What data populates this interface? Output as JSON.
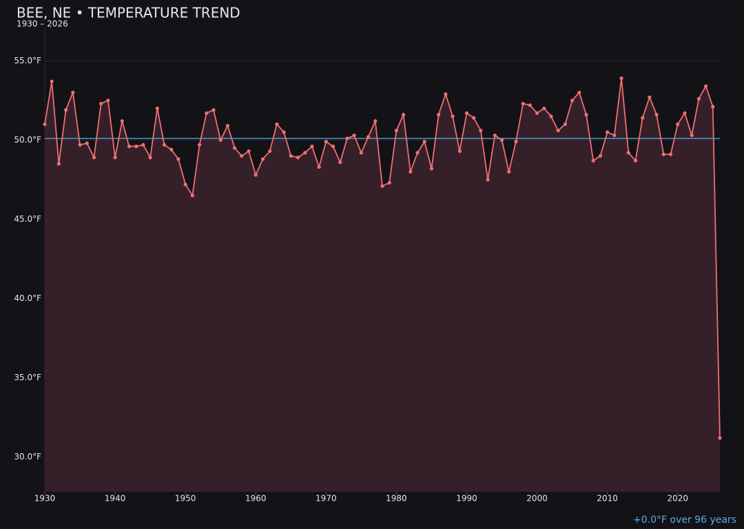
{
  "chart_data": {
    "type": "line",
    "title": "BEE, NE • TEMPERATURE TREND",
    "subtitle": "1930 – 2026",
    "annotation": "+0.0°F over 96 years",
    "x": [
      1930,
      1931,
      1932,
      1933,
      1934,
      1935,
      1936,
      1937,
      1938,
      1939,
      1940,
      1941,
      1942,
      1943,
      1944,
      1945,
      1946,
      1947,
      1948,
      1949,
      1950,
      1951,
      1952,
      1953,
      1954,
      1955,
      1956,
      1957,
      1958,
      1959,
      1960,
      1961,
      1962,
      1963,
      1964,
      1965,
      1966,
      1967,
      1968,
      1969,
      1970,
      1971,
      1972,
      1973,
      1974,
      1975,
      1976,
      1977,
      1978,
      1979,
      1980,
      1981,
      1982,
      1983,
      1984,
      1985,
      1986,
      1987,
      1988,
      1989,
      1990,
      1991,
      1992,
      1993,
      1994,
      1995,
      1996,
      1997,
      1998,
      1999,
      2000,
      2001,
      2002,
      2003,
      2004,
      2005,
      2006,
      2007,
      2008,
      2009,
      2010,
      2011,
      2012,
      2013,
      2014,
      2015,
      2016,
      2017,
      2018,
      2019,
      2020,
      2021,
      2022,
      2023,
      2024,
      2025,
      2026
    ],
    "series": [
      {
        "color": "#f07070",
        "fill": "#35202a",
        "values": [
          51.0,
          53.7,
          48.5,
          51.9,
          53.0,
          49.7,
          49.8,
          48.9,
          52.3,
          52.5,
          48.9,
          51.2,
          49.6,
          49.6,
          49.7,
          48.9,
          52.0,
          49.7,
          49.4,
          48.8,
          47.2,
          46.5,
          49.7,
          51.7,
          51.9,
          50.0,
          50.9,
          49.5,
          49.0,
          49.3,
          47.8,
          48.8,
          49.3,
          51.0,
          50.5,
          49.0,
          48.9,
          49.2,
          49.6,
          48.3,
          49.9,
          49.6,
          48.6,
          50.1,
          50.3,
          49.2,
          50.2,
          51.2,
          47.1,
          47.3,
          50.6,
          51.6,
          48.0,
          49.2,
          49.9,
          48.2,
          51.6,
          52.9,
          51.5,
          49.3,
          51.7,
          51.4,
          50.6,
          47.5,
          50.3,
          50.0,
          48.0,
          49.9,
          52.3,
          52.2,
          51.7,
          52.0,
          51.5,
          50.6,
          51.0,
          52.5,
          53.0,
          51.6,
          48.7,
          49.0,
          50.5,
          50.3,
          53.9,
          49.2,
          48.7,
          51.4,
          52.7,
          51.6,
          49.1,
          49.1,
          51.0,
          51.7,
          50.3,
          52.6,
          53.4,
          52.1,
          31.2
        ]
      }
    ],
    "reference_line": {
      "value": 50.1,
      "color": "#5aaee8"
    },
    "xlim": [
      1930,
      2026
    ],
    "xticks": [
      1930,
      1940,
      1950,
      1960,
      1970,
      1980,
      1990,
      2000,
      2010,
      2020
    ],
    "ylim": [
      27.8,
      57.1
    ],
    "yticks": [
      {
        "value": 30,
        "label": "30.0°F"
      },
      {
        "value": 35,
        "label": "35.0°F"
      },
      {
        "value": 40,
        "label": "40.0°F"
      },
      {
        "value": 45,
        "label": "45.0°F"
      },
      {
        "value": 50,
        "label": "50.0°F"
      },
      {
        "value": 55,
        "label": "55.0°F"
      }
    ],
    "grid": true
  }
}
